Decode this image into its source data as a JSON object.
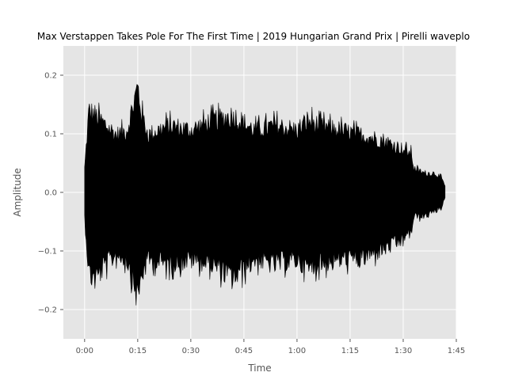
{
  "chart_data": {
    "type": "area",
    "title": "Max Verstappen Takes Pole For The First Time | 2019 Hungarian Grand Prix | Pirelli waveplo",
    "xlabel": "Time",
    "ylabel": "Amplitude",
    "xlim": [
      -0.1,
      1.75
    ],
    "ylim": [
      -0.25,
      0.25
    ],
    "grid": true,
    "x_ticks": [
      {
        "value": 0.0,
        "label": "0:00"
      },
      {
        "value": 0.25,
        "label": "0:15"
      },
      {
        "value": 0.5,
        "label": "0:30"
      },
      {
        "value": 0.75,
        "label": "0:45"
      },
      {
        "value": 1.0,
        "label": "1:00"
      },
      {
        "value": 1.25,
        "label": "1:15"
      },
      {
        "value": 1.5,
        "label": "1:30"
      },
      {
        "value": 1.75,
        "label": "1:45"
      }
    ],
    "y_ticks": [
      {
        "value": 0.2,
        "label": "0.2"
      },
      {
        "value": 0.1,
        "label": "0.1"
      },
      {
        "value": 0.0,
        "label": "0.0"
      },
      {
        "value": -0.1,
        "label": "−0.1"
      },
      {
        "value": -0.2,
        "label": "−0.2"
      }
    ],
    "series": [
      {
        "color": "#000000",
        "envelope": [
          {
            "x": 0.0,
            "upper": 0.05,
            "lower": -0.05
          },
          {
            "x": 0.02,
            "upper": 0.17,
            "lower": -0.17
          },
          {
            "x": 0.05,
            "upper": 0.16,
            "lower": -0.18
          },
          {
            "x": 0.1,
            "upper": 0.14,
            "lower": -0.15
          },
          {
            "x": 0.15,
            "upper": 0.12,
            "lower": -0.13
          },
          {
            "x": 0.2,
            "upper": 0.13,
            "lower": -0.14
          },
          {
            "x": 0.25,
            "upper": 0.22,
            "lower": -0.22
          },
          {
            "x": 0.27,
            "upper": 0.16,
            "lower": -0.17
          },
          {
            "x": 0.3,
            "upper": 0.12,
            "lower": -0.14
          },
          {
            "x": 0.4,
            "upper": 0.14,
            "lower": -0.15
          },
          {
            "x": 0.5,
            "upper": 0.13,
            "lower": -0.14
          },
          {
            "x": 0.6,
            "upper": 0.15,
            "lower": -0.15
          },
          {
            "x": 0.7,
            "upper": 0.16,
            "lower": -0.18
          },
          {
            "x": 0.8,
            "upper": 0.13,
            "lower": -0.14
          },
          {
            "x": 0.9,
            "upper": 0.14,
            "lower": -0.15
          },
          {
            "x": 1.0,
            "upper": 0.13,
            "lower": -0.14
          },
          {
            "x": 1.05,
            "upper": 0.15,
            "lower": -0.16
          },
          {
            "x": 1.1,
            "upper": 0.14,
            "lower": -0.15
          },
          {
            "x": 1.2,
            "upper": 0.13,
            "lower": -0.14
          },
          {
            "x": 1.3,
            "upper": 0.12,
            "lower": -0.14
          },
          {
            "x": 1.4,
            "upper": 0.11,
            "lower": -0.12
          },
          {
            "x": 1.45,
            "upper": 0.1,
            "lower": -0.11
          },
          {
            "x": 1.5,
            "upper": 0.09,
            "lower": -0.1
          },
          {
            "x": 1.54,
            "upper": 0.08,
            "lower": -0.08
          },
          {
            "x": 1.55,
            "upper": 0.05,
            "lower": -0.05
          },
          {
            "x": 1.6,
            "upper": 0.04,
            "lower": -0.05
          },
          {
            "x": 1.65,
            "upper": 0.04,
            "lower": -0.04
          },
          {
            "x": 1.68,
            "upper": 0.03,
            "lower": -0.03
          },
          {
            "x": 1.7,
            "upper": 0.01,
            "lower": -0.01
          }
        ]
      }
    ]
  }
}
